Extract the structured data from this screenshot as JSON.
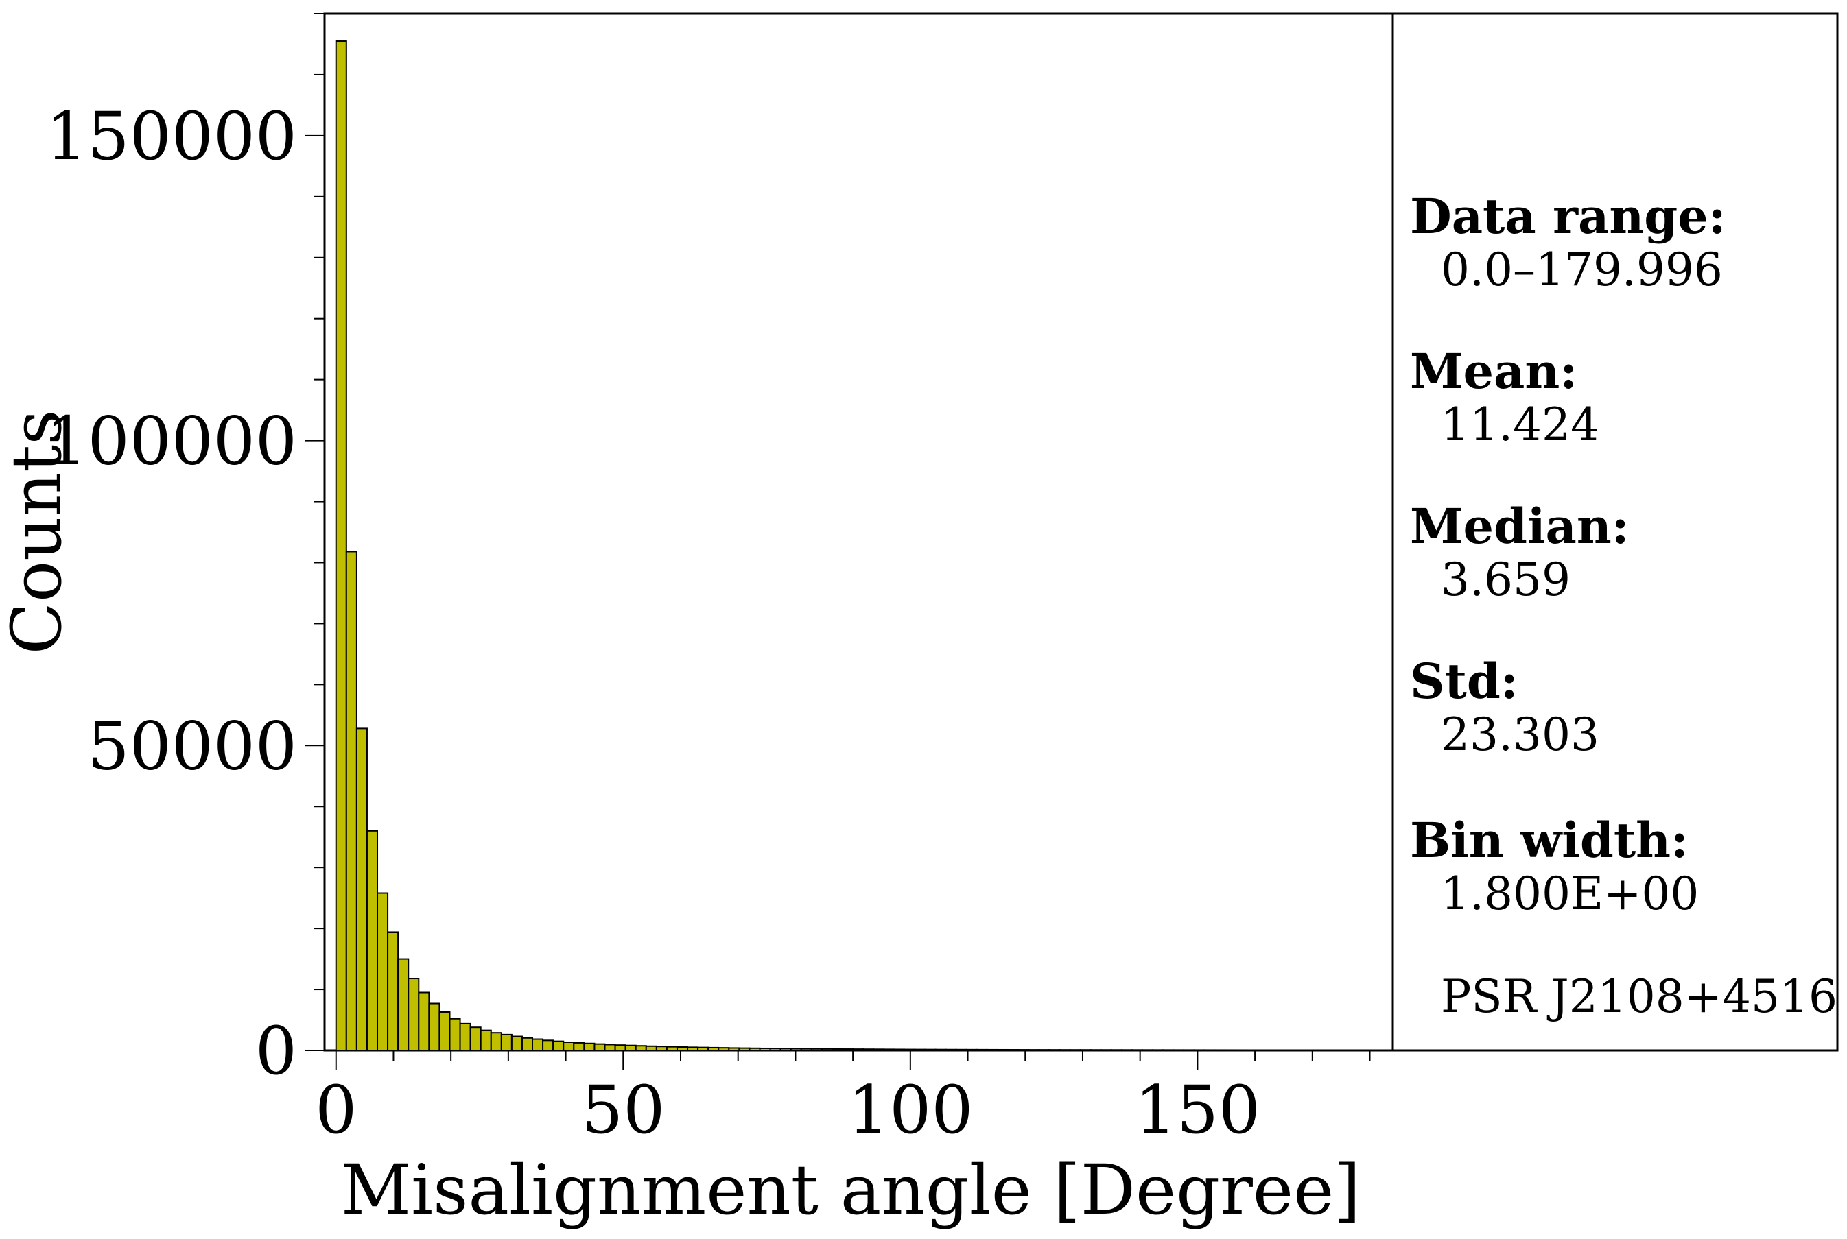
{
  "chart_data": {
    "type": "bar",
    "xlabel": "Misalignment angle [Degree]",
    "ylabel": "Counts",
    "xlim": [
      -2,
      184
    ],
    "ylim": [
      0,
      170000
    ],
    "x_ticks": [
      0,
      50,
      100,
      150
    ],
    "y_ticks": [
      0,
      50000,
      100000,
      150000
    ],
    "bin_width": 1.8,
    "bin_start": 0.0,
    "bar_color": "#bfbf00",
    "edge_color": "#000000",
    "values": [
      165500,
      81800,
      52800,
      36000,
      25800,
      19400,
      15000,
      11800,
      9500,
      7700,
      6300,
      5200,
      4400,
      3800,
      3300,
      2900,
      2600,
      2300,
      2050,
      1850,
      1650,
      1500,
      1350,
      1250,
      1150,
      1050,
      960,
      880,
      820,
      760,
      700,
      650,
      600,
      560,
      520,
      490,
      460,
      430,
      400,
      380,
      360,
      340,
      320,
      300,
      285,
      270,
      255,
      240,
      230,
      220,
      210,
      200,
      190,
      180,
      170,
      160,
      155,
      150,
      145,
      140,
      135,
      130,
      125,
      120,
      115,
      110,
      105,
      100,
      98,
      95,
      92,
      90,
      88,
      86,
      84,
      82,
      80,
      78,
      76,
      74,
      72,
      70,
      68,
      66,
      64,
      62,
      60,
      58,
      56,
      54,
      52,
      50,
      48,
      46,
      44,
      42,
      40,
      38,
      36,
      34
    ]
  },
  "stats_panel": {
    "data_range_label": "Data range:",
    "data_range_value": "0.0–179.996",
    "mean_label": "Mean:",
    "mean_value": "11.424",
    "median_label": "Median:",
    "median_value": "3.659",
    "std_label": "Std:",
    "std_value": "23.303",
    "bin_width_label": "Bin width:",
    "bin_width_value": "1.800E+00",
    "source_label": "PSR J2108+4516"
  }
}
